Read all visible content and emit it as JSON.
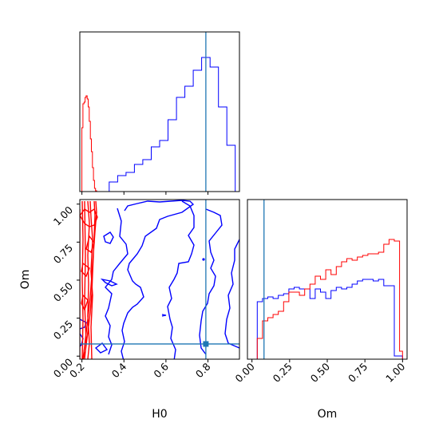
{
  "chart_data": [
    {
      "type": "histogram",
      "panel": "H0 marginal",
      "xlim": [
        0.19,
        0.95
      ],
      "truth_line_x": 0.79,
      "series": [
        {
          "color": "#0000ff",
          "bin_edges": [
            0.21,
            0.25,
            0.29,
            0.33,
            0.37,
            0.41,
            0.45,
            0.49,
            0.53,
            0.57,
            0.61,
            0.65,
            0.69,
            0.73,
            0.77,
            0.81,
            0.85,
            0.89,
            0.93
          ],
          "heights": [
            0,
            0,
            0,
            0.06,
            0.1,
            0.12,
            0.17,
            0.2,
            0.28,
            0.32,
            0.45,
            0.59,
            0.66,
            0.76,
            0.84,
            0.78,
            0.53,
            0.29
          ]
        },
        {
          "color": "#ff0000",
          "bin_edges": [
            0.2,
            0.205,
            0.21,
            0.215,
            0.22,
            0.225,
            0.23,
            0.235,
            0.24,
            0.245,
            0.25,
            0.255,
            0.26,
            0.265,
            0.27,
            0.275
          ],
          "heights": [
            0.4,
            0.55,
            0.56,
            0.59,
            0.6,
            0.58,
            0.53,
            0.44,
            0.33,
            0.25,
            0.15,
            0.07,
            0.02,
            0.005,
            0,
            0
          ]
        }
      ]
    },
    {
      "type": "contour",
      "panel": "H0 vs Om",
      "xlabel": "H0",
      "ylabel": "Om",
      "xlim": [
        0.19,
        0.95
      ],
      "ylim": [
        -0.02,
        1.03
      ],
      "xticks": [
        "0.2",
        "0.4",
        "0.6",
        "0.8"
      ],
      "yticks": [
        "0.00",
        "0.25",
        "0.50",
        "0.75",
        "1.00"
      ],
      "truth_point": [
        0.79,
        0.08
      ]
    },
    {
      "type": "histogram",
      "panel": "Om marginal",
      "xlabel": "Om",
      "xlim": [
        -0.03,
        1.03
      ],
      "xticks": [
        "0.00",
        "0.25",
        "0.50",
        "0.75",
        "1.00"
      ],
      "truth_line_x": 0.08,
      "series": [
        {
          "color": "#0000ff",
          "bin_edges": [
            0.0,
            0.035,
            0.07,
            0.105,
            0.14,
            0.175,
            0.21,
            0.245,
            0.28,
            0.315,
            0.35,
            0.385,
            0.42,
            0.455,
            0.49,
            0.525,
            0.56,
            0.595,
            0.63,
            0.665,
            0.7,
            0.735,
            0.77,
            0.805,
            0.84,
            0.875,
            0.91,
            0.945,
            0.98,
            1.0
          ],
          "heights": [
            0,
            0.36,
            0.38,
            0.39,
            0.38,
            0.4,
            0.41,
            0.44,
            0.45,
            0.44,
            0.44,
            0.38,
            0.44,
            0.42,
            0.38,
            0.43,
            0.45,
            0.44,
            0.45,
            0.47,
            0.49,
            0.5,
            0.5,
            0.49,
            0.5,
            0.46,
            0.46,
            0.02,
            0.02
          ]
        },
        {
          "color": "#ff0000",
          "bin_edges": [
            0.0,
            0.035,
            0.07,
            0.105,
            0.14,
            0.175,
            0.21,
            0.245,
            0.28,
            0.315,
            0.35,
            0.385,
            0.42,
            0.455,
            0.49,
            0.525,
            0.56,
            0.595,
            0.63,
            0.665,
            0.7,
            0.735,
            0.77,
            0.805,
            0.84,
            0.875,
            0.91,
            0.945,
            0.98,
            1.0
          ],
          "heights": [
            0,
            0.13,
            0.24,
            0.26,
            0.28,
            0.3,
            0.36,
            0.42,
            0.42,
            0.4,
            0.44,
            0.47,
            0.52,
            0.5,
            0.56,
            0.53,
            0.58,
            0.61,
            0.63,
            0.62,
            0.64,
            0.65,
            0.66,
            0.66,
            0.67,
            0.72,
            0.75,
            0.74,
            0.05
          ]
        }
      ]
    }
  ],
  "colors": {
    "series_blue": "#0000ff",
    "series_red": "#ff0000",
    "truth": "#1f77b4"
  }
}
